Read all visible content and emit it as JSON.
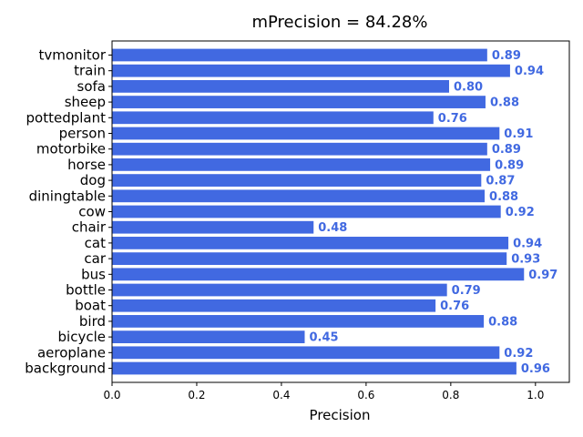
{
  "chart_data": {
    "type": "bar",
    "orientation": "horizontal",
    "title": "mPrecision = 84.28%",
    "xlabel": "Precision",
    "ylabel": "",
    "xlim": [
      0,
      1.08
    ],
    "xticks": [
      "0.0",
      "0.2",
      "0.4",
      "0.6",
      "0.8",
      "1.0"
    ],
    "grid": false,
    "bar_color": "#4169e1",
    "label_color": "#4169e1",
    "categories": [
      "background",
      "aeroplane",
      "bicycle",
      "bird",
      "boat",
      "bottle",
      "bus",
      "car",
      "cat",
      "chair",
      "cow",
      "diningtable",
      "dog",
      "horse",
      "motorbike",
      "person",
      "pottedplant",
      "sheep",
      "sofa",
      "train",
      "tvmonitor"
    ],
    "values": [
      0.955,
      0.915,
      0.455,
      0.878,
      0.764,
      0.791,
      0.973,
      0.932,
      0.936,
      0.476,
      0.918,
      0.88,
      0.872,
      0.893,
      0.886,
      0.915,
      0.759,
      0.882,
      0.796,
      0.94,
      0.886
    ],
    "value_labels": [
      "0.96",
      "0.92",
      "0.45",
      "0.88",
      "0.76",
      "0.79",
      "0.97",
      "0.93",
      "0.94",
      "0.48",
      "0.92",
      "0.88",
      "0.87",
      "0.89",
      "0.89",
      "0.91",
      "0.76",
      "0.88",
      "0.80",
      "0.94",
      "0.89"
    ]
  }
}
